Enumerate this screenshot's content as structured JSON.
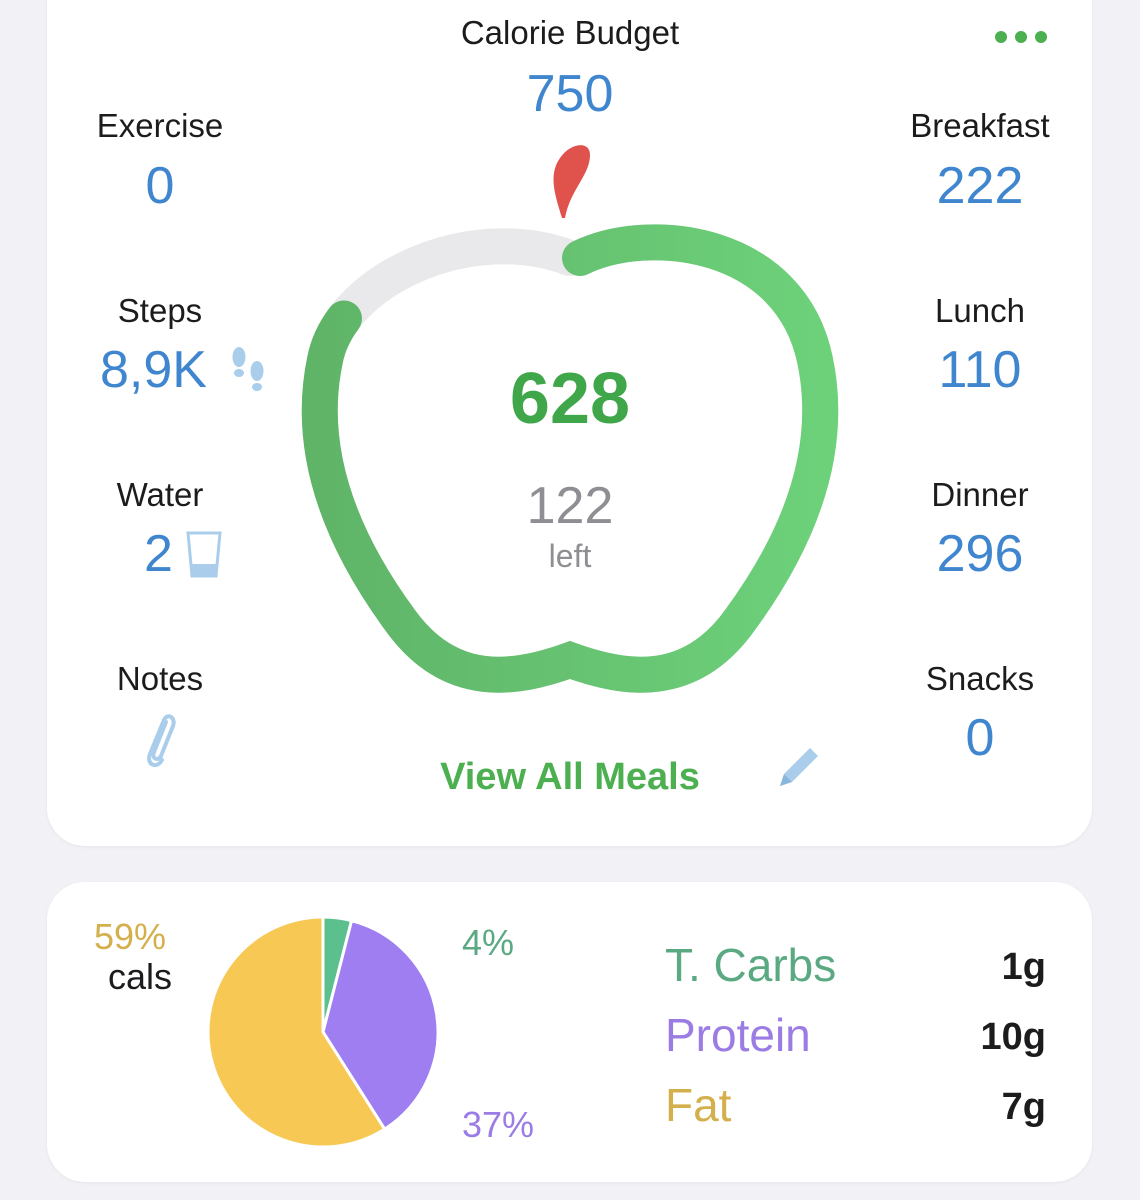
{
  "header": {
    "budget_label": "Calorie Budget",
    "budget_value": "750",
    "more_icon": "ellipsis-icon"
  },
  "left_stats": {
    "exercise": {
      "label": "Exercise",
      "value": "0"
    },
    "steps": {
      "label": "Steps",
      "value": "8,9K",
      "icon": "footsteps-icon"
    },
    "water": {
      "label": "Water",
      "value": "2",
      "icon": "glass-icon"
    },
    "notes": {
      "label": "Notes",
      "icon": "paperclip-icon"
    }
  },
  "right_stats": {
    "breakfast": {
      "label": "Breakfast",
      "value": "222"
    },
    "lunch": {
      "label": "Lunch",
      "value": "110"
    },
    "dinner": {
      "label": "Dinner",
      "value": "296"
    },
    "snacks": {
      "label": "Snacks",
      "value": "0"
    }
  },
  "ring": {
    "consumed": "628",
    "remaining": "122",
    "remaining_label": "left",
    "progress_fraction": 0.837
  },
  "actions": {
    "view_all_meals": "View All Meals",
    "edit_icon": "pencil-icon"
  },
  "macros": {
    "cals_percent": "59%",
    "cals_label": "cals",
    "carbs_percent": "4%",
    "protein_percent": "37%",
    "items": [
      {
        "name": "T. Carbs",
        "value": "1g",
        "color": "#5aa982"
      },
      {
        "name": "Protein",
        "value": "10g",
        "color": "#9b7ce4"
      },
      {
        "name": "Fat",
        "value": "7g",
        "color": "#d4b04c"
      }
    ]
  },
  "colors": {
    "accent_green": "#4caf50",
    "value_blue": "#3f86cf",
    "apple_stem": "#e0524c",
    "pie_carbs": "#5cbf8e",
    "pie_protein": "#9e7ef0",
    "pie_fat": "#f7c954"
  },
  "chart_data": {
    "type": "pie",
    "categories": [
      "Carbs",
      "Protein",
      "Fat"
    ],
    "values": [
      4,
      37,
      59
    ]
  }
}
